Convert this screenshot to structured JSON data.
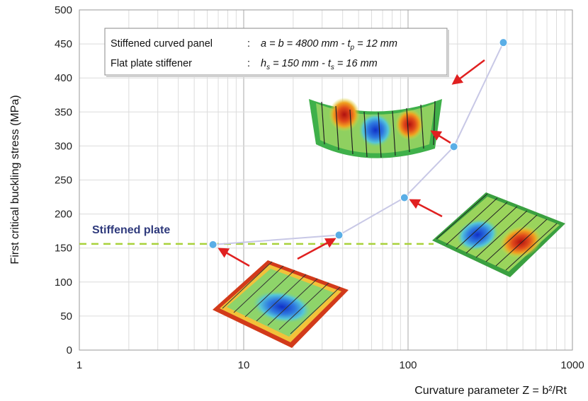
{
  "chart_data": {
    "type": "scatter",
    "xscale": "log",
    "xlim": [
      1,
      1000
    ],
    "ylim": [
      0,
      500
    ],
    "grid": true,
    "xticks": [
      "1",
      "10",
      "100",
      "1000"
    ],
    "yticks": [
      "0",
      "50",
      "100",
      "150",
      "200",
      "250",
      "300",
      "350",
      "400",
      "450",
      "500"
    ],
    "xlabel": "Curvature parameter Z = b²/Rt",
    "ylabel": "First critical buckling stress  (MPa)",
    "series": [
      {
        "x": [
          6.5,
          38,
          95,
          190,
          380
        ],
        "y": [
          155,
          169,
          224,
          299,
          452
        ],
        "color": "#5aaee6",
        "line_color": "#c8c8e6"
      }
    ],
    "reference_line": {
      "y": 156,
      "label": "Stiffened plate",
      "color": "#a9d13b"
    },
    "legend_box": {
      "row1": {
        "label": "Stiffened curved panel",
        "sep": ":",
        "text": "a =  b  = 4800 mm - t",
        "sub": "p",
        "tail": " = 12 mm"
      },
      "row2": {
        "label": "Flat plate stiffener",
        "sep": ":",
        "text": "h",
        "sub": "s",
        "mid": " =  150 mm - t",
        "sub2": "s",
        "tail": " = 16 mm"
      }
    },
    "arrow_color": "#e02020"
  }
}
